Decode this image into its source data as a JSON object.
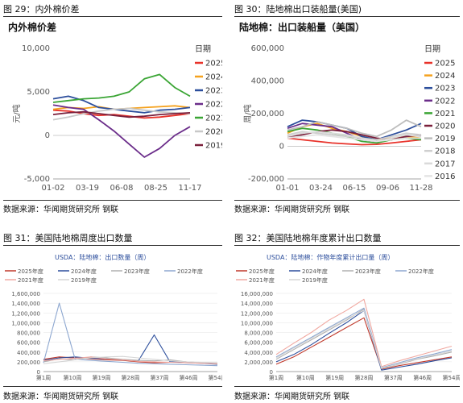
{
  "figures": [
    {
      "label": "图 29：内外棉价差",
      "source": "数据来源：华闻期货研究所 钢联"
    },
    {
      "label": "图 30：陆地棉出口装船量(美国)",
      "source": "数据来源：华闻期货研究所 钢联"
    },
    {
      "label": "图 31：美国陆地棉周度出口数量",
      "source": "数据来源：华闻期货研究所 钢联"
    },
    {
      "label": "图 32：美国陆地棉年度累计出口数量",
      "source": "数据来源：华闻期货研究所 钢联"
    }
  ],
  "chart_data": [
    {
      "type": "line",
      "title": "内外棉价差",
      "ylabel": "元/吨",
      "ylim": [
        -5000,
        10000
      ],
      "yticks": [
        "10,000",
        "5,000",
        "0",
        "-5,000"
      ],
      "xticks": [
        "01-02",
        "03-19",
        "06-08",
        "08-25",
        "11-17"
      ],
      "legend_title": "日期",
      "legend_position": "right",
      "series": [
        {
          "name": "2025",
          "color": "#e8322a",
          "values": [
            2900,
            2800,
            2500,
            2300,
            2400,
            2200,
            2000,
            2100,
            2300,
            2500
          ]
        },
        {
          "name": "2024",
          "color": "#f5a21e",
          "values": [
            3000,
            3200,
            3100,
            3300,
            3000,
            3100,
            3200,
            3300,
            3400,
            3200
          ]
        },
        {
          "name": "2023",
          "color": "#2c4e9c",
          "values": [
            4200,
            4500,
            4000,
            3200,
            3000,
            2800,
            2600,
            2900,
            3000,
            3200
          ]
        },
        {
          "name": "2022",
          "color": "#6b2d8a",
          "values": [
            3500,
            3200,
            3000,
            1800,
            500,
            -1000,
            -2500,
            -1500,
            0,
            1000
          ]
        },
        {
          "name": "2021",
          "color": "#3aa534",
          "values": [
            3800,
            4000,
            4200,
            4300,
            4500,
            5000,
            6500,
            7000,
            5500,
            4500
          ]
        },
        {
          "name": "2020",
          "color": "#c8c8c8",
          "values": [
            1800,
            2100,
            2500,
            2800,
            3000,
            3100,
            2900,
            2700,
            2600,
            2500
          ]
        },
        {
          "name": "2019",
          "color": "#7a1f3b",
          "values": [
            2400,
            2600,
            2700,
            2500,
            2300,
            2100,
            2200,
            2400,
            2500,
            2600
          ]
        }
      ]
    },
    {
      "type": "line",
      "title": "陆地棉：出口装船量（美国）",
      "ylabel": "周/吨",
      "ylim": [
        -200000,
        600000
      ],
      "yticks": [
        "600,000",
        "400,000",
        "200,000",
        "0",
        "-200,000"
      ],
      "xticks": [
        "01-01",
        "03-24",
        "06-15",
        "09-06",
        "11-28"
      ],
      "legend_title": "日期",
      "legend_position": "right",
      "series": [
        {
          "name": "2025",
          "color": "#e8322a",
          "values": [
            50000,
            40000,
            30000,
            20000,
            15000,
            10000,
            12000,
            20000,
            30000,
            40000
          ]
        },
        {
          "name": "2024",
          "color": "#f5a21e",
          "values": [
            80000,
            120000,
            140000,
            110000,
            90000,
            60000,
            40000,
            50000,
            60000,
            50000
          ]
        },
        {
          "name": "2023",
          "color": "#2c4e9c",
          "values": [
            120000,
            160000,
            150000,
            130000,
            110000,
            60000,
            40000,
            70000,
            100000,
            140000
          ]
        },
        {
          "name": "2022",
          "color": "#6b2d8a",
          "values": [
            110000,
            140000,
            130000,
            120000,
            80000,
            40000,
            30000,
            40000,
            60000,
            70000
          ]
        },
        {
          "name": "2021",
          "color": "#3aa534",
          "values": [
            90000,
            110000,
            100000,
            80000,
            60000,
            30000,
            20000,
            40000,
            50000,
            40000
          ]
        },
        {
          "name": "2020",
          "color": "#7a1f3b",
          "values": [
            60000,
            70000,
            90000,
            100000,
            90000,
            70000,
            50000,
            40000,
            60000,
            70000
          ]
        },
        {
          "name": "2019",
          "color": "#bdbdbd",
          "values": [
            100000,
            120000,
            150000,
            130000,
            110000,
            80000,
            60000,
            100000,
            160000,
            120000
          ]
        },
        {
          "name": "2018",
          "color": "#cfcfcf",
          "values": [
            70000,
            90000,
            80000,
            70000,
            60000,
            50000,
            40000,
            60000,
            80000,
            70000
          ]
        },
        {
          "name": "2017",
          "color": "#dadada",
          "values": [
            60000,
            80000,
            90000,
            80000,
            70000,
            50000,
            30000,
            50000,
            70000,
            60000
          ]
        },
        {
          "name": "2016",
          "color": "#e4e4e4",
          "values": [
            50000,
            60000,
            70000,
            60000,
            50000,
            40000,
            30000,
            40000,
            50000,
            50000
          ]
        }
      ]
    },
    {
      "type": "line",
      "title": "USDA：陆地棉：出口数量（周）",
      "ylim": [
        0,
        1600000
      ],
      "yticks": [
        "1,600,000",
        "1,400,000",
        "1,200,000",
        "1,000,000",
        "800,000",
        "600,000",
        "400,000",
        "200,000",
        "0"
      ],
      "xticks": [
        "第1周",
        "第10周",
        "第19周",
        "第28周",
        "第37周",
        "第46周",
        "第54周"
      ],
      "legend_position": "top",
      "series": [
        {
          "name": "2025年度",
          "color": "#c0392b",
          "values": [
            250000,
            300000,
            280000,
            260000,
            240000,
            230000,
            200000,
            180000,
            190000,
            200000,
            180000,
            160000
          ]
        },
        {
          "name": "2024年度",
          "color": "#2c4e9c",
          "values": [
            230000,
            280000,
            300000,
            270000,
            260000,
            240000,
            220000,
            750000,
            200000,
            180000,
            170000,
            150000
          ]
        },
        {
          "name": "2023年度",
          "color": "#b0b0b0",
          "values": [
            200000,
            260000,
            240000,
            300000,
            280000,
            250000,
            230000,
            220000,
            240000,
            200000,
            180000,
            160000
          ]
        },
        {
          "name": "2022年度",
          "color": "#8da7d0",
          "values": [
            180000,
            1400000,
            250000,
            230000,
            210000,
            190000,
            170000,
            160000,
            150000,
            140000,
            130000,
            120000
          ]
        },
        {
          "name": "2021年度",
          "color": "#f0a8a0",
          "values": [
            220000,
            250000,
            270000,
            300000,
            260000,
            240000,
            210000,
            200000,
            190000,
            180000,
            170000,
            160000
          ]
        },
        {
          "name": "2019年度",
          "color": "#d6d6d6",
          "values": [
            160000,
            200000,
            240000,
            280000,
            300000,
            310000,
            280000,
            250000,
            220000,
            200000,
            190000,
            180000
          ]
        }
      ]
    },
    {
      "type": "line",
      "title": "USDA：陆地棉：作物年度累计出口量（周）",
      "ylim": [
        0,
        16000000
      ],
      "yticks": [
        "16,000,000",
        "14,000,000",
        "12,000,000",
        "10,000,000",
        "8,000,000",
        "6,000,000",
        "4,000,000",
        "2,000,000",
        "0"
      ],
      "xticks": [
        "第1周",
        "第10周",
        "第19周",
        "第28周",
        "第37周",
        "第46周",
        "第54周"
      ],
      "legend_position": "top",
      "series": [
        {
          "name": "2025年度",
          "color": "#c0392b",
          "values": [
            1500000,
            3000000,
            5000000,
            7000000,
            9000000,
            11000000,
            500000,
            1200000,
            1800000,
            2400000,
            3000000
          ]
        },
        {
          "name": "2024年度",
          "color": "#2c4e9c",
          "values": [
            2000000,
            3500000,
            5500000,
            7800000,
            10000000,
            12500000,
            300000,
            900000,
            1500000,
            2200000,
            2800000
          ]
        },
        {
          "name": "2023年度",
          "color": "#b0b0b0",
          "values": [
            2500000,
            4500000,
            6500000,
            8500000,
            10500000,
            12800000,
            600000,
            1500000,
            2500000,
            3200000,
            4000000
          ]
        },
        {
          "name": "2022年度",
          "color": "#8da7d0",
          "values": [
            3000000,
            5000000,
            7000000,
            9000000,
            11000000,
            13000000,
            800000,
            1800000,
            2800000,
            3600000,
            4500000
          ]
        },
        {
          "name": "2021年度",
          "color": "#f0a8a0",
          "values": [
            3500000,
            5800000,
            8000000,
            10500000,
            12500000,
            14800000,
            1000000,
            2200000,
            3200000,
            4200000,
            5200000
          ]
        },
        {
          "name": "2019年度",
          "color": "#d6d6d6",
          "values": [
            2800000,
            4800000,
            6800000,
            8800000,
            10800000,
            12500000,
            700000,
            1600000,
            2600000,
            3400000,
            4200000
          ]
        }
      ]
    }
  ]
}
